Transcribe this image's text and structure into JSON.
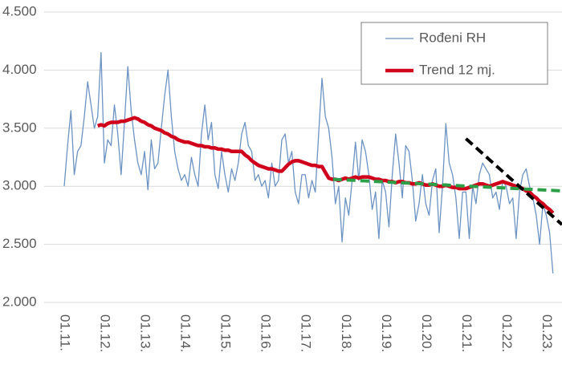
{
  "chart_data": {
    "type": "line",
    "categories": [
      "01.11.",
      null,
      null,
      null,
      null,
      null,
      null,
      null,
      null,
      null,
      null,
      null,
      "01.12.",
      null,
      null,
      null,
      null,
      null,
      null,
      null,
      null,
      null,
      null,
      null,
      "01.13.",
      null,
      null,
      null,
      null,
      null,
      null,
      null,
      null,
      null,
      null,
      null,
      "01.14.",
      null,
      null,
      null,
      null,
      null,
      null,
      null,
      null,
      null,
      null,
      null,
      "01.15.",
      null,
      null,
      null,
      null,
      null,
      null,
      null,
      null,
      null,
      null,
      null,
      "01.16.",
      null,
      null,
      null,
      null,
      null,
      null,
      null,
      null,
      null,
      null,
      null,
      "01.17.",
      null,
      null,
      null,
      null,
      null,
      null,
      null,
      null,
      null,
      null,
      null,
      "01.18.",
      null,
      null,
      null,
      null,
      null,
      null,
      null,
      null,
      null,
      null,
      null,
      "01.19.",
      null,
      null,
      null,
      null,
      null,
      null,
      null,
      null,
      null,
      null,
      null,
      "01.20.",
      null,
      null,
      null,
      null,
      null,
      null,
      null,
      null,
      null,
      null,
      null,
      "01.21.",
      null,
      null,
      null,
      null,
      null,
      null,
      null,
      null,
      null,
      null,
      null,
      "01.22.",
      null,
      null,
      null,
      null,
      null,
      null,
      null,
      null,
      null,
      null,
      null,
      "01.23.",
      null,
      null
    ],
    "series": [
      {
        "name": "Rođeni RH",
        "color": "#6c93c4",
        "width": 1.3,
        "values": [
          3000,
          3350,
          3650,
          3100,
          3300,
          3350,
          3600,
          3900,
          3700,
          3500,
          3600,
          4150,
          3200,
          3400,
          3350,
          3700,
          3450,
          3100,
          3550,
          4030,
          3650,
          3400,
          3200,
          3100,
          3300,
          2970,
          3400,
          3150,
          3200,
          3500,
          3780,
          4000,
          3600,
          3300,
          3150,
          3050,
          3100,
          3000,
          3250,
          3100,
          3000,
          3450,
          3700,
          3400,
          3550,
          3100,
          2980,
          3300,
          3100,
          2950,
          3150,
          3050,
          3200,
          3450,
          3550,
          3350,
          3300,
          3050,
          3100,
          3000,
          3050,
          2900,
          3200,
          3000,
          3050,
          3400,
          3450,
          3200,
          3300,
          2950,
          2850,
          3100,
          3100,
          2900,
          3050,
          2950,
          3450,
          3930,
          3600,
          3500,
          3250,
          2850,
          3000,
          2520,
          2900,
          2750,
          3050,
          3380,
          3050,
          3400,
          3300,
          3100,
          2800,
          2950,
          2550,
          3050,
          2950,
          2650,
          3100,
          3450,
          3200,
          2900,
          3350,
          3300,
          3050,
          2700,
          2850,
          3100,
          2850,
          2750,
          3050,
          3150,
          2600,
          3000,
          3540,
          3200,
          3100,
          2900,
          2550,
          2950,
          2950,
          2550,
          3000,
          2850,
          3100,
          3200,
          3150,
          3100,
          2900,
          2950,
          2800,
          3050,
          3000,
          2850,
          2900,
          2550,
          2950,
          3100,
          3150,
          3000,
          2900,
          2750,
          2500,
          2850,
          2750,
          2600,
          2250
        ]
      },
      {
        "name": "Trend 12 mj.",
        "color": "#d0021b",
        "width": 4.5,
        "values": [
          null,
          null,
          null,
          null,
          null,
          null,
          null,
          null,
          null,
          null,
          3520,
          3530,
          3520,
          3540,
          3550,
          3550,
          3550,
          3560,
          3560,
          3570,
          3580,
          3590,
          3580,
          3560,
          3550,
          3530,
          3520,
          3500,
          3490,
          3480,
          3460,
          3450,
          3430,
          3420,
          3400,
          3390,
          3380,
          3380,
          3370,
          3360,
          3350,
          3350,
          3340,
          3340,
          3330,
          3330,
          3320,
          3320,
          3310,
          3310,
          3300,
          3300,
          3300,
          3300,
          3270,
          3250,
          3220,
          3200,
          3180,
          3170,
          3160,
          3150,
          3150,
          3140,
          3130,
          3130,
          3160,
          3190,
          3210,
          3220,
          3220,
          3210,
          3200,
          3190,
          3180,
          3180,
          3170,
          3170,
          3120,
          3070,
          3060,
          3060,
          3050,
          3060,
          3070,
          3060,
          3070,
          3080,
          3070,
          3080,
          3080,
          3080,
          3070,
          3060,
          3060,
          3050,
          3050,
          3040,
          3040,
          3030,
          3040,
          3040,
          3030,
          3030,
          3020,
          3020,
          3030,
          3020,
          3010,
          3010,
          3020,
          3010,
          3000,
          3000,
          3010,
          3000,
          2990,
          2990,
          2980,
          2980,
          2980,
          2990,
          3000,
          3010,
          3020,
          3020,
          3010,
          3000,
          3010,
          3020,
          3030,
          3040,
          3030,
          3020,
          3010,
          3000,
          2990,
          2980,
          2960,
          2950,
          2920,
          2900,
          2870,
          2850,
          2820,
          2800,
          2770
        ]
      }
    ],
    "trend_lines": [
      {
        "color": "#2ca048",
        "x": [
          80.3,
          148.7
        ],
        "values": [
          3060,
          2960
        ]
      },
      {
        "color": "#000000",
        "x": [
          120,
          148.7
        ],
        "values": [
          3410,
          2670
        ]
      }
    ],
    "xlim": [
      0,
      148.7
    ],
    "ylim": [
      2000,
      4500
    ],
    "yticks": [
      {
        "value": 2000,
        "label": "2.000"
      },
      {
        "value": 2500,
        "label": "2.500"
      },
      {
        "value": 3000,
        "label": "3.000"
      },
      {
        "value": 3500,
        "label": "3.500"
      },
      {
        "value": 4000,
        "label": "4.000"
      },
      {
        "value": 4500,
        "label": "4.500"
      }
    ],
    "grid": true,
    "legend": "upper right"
  }
}
